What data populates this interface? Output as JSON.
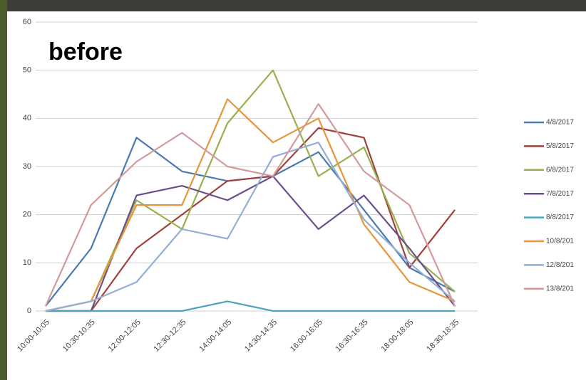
{
  "chart_data": {
    "type": "line",
    "title": "before",
    "categories": [
      "10:00-10:05",
      "10:30-10:35",
      "12:00-12:05",
      "12:30-12:35",
      "14:00-14:05",
      "14:30-14:35",
      "16:00-16:05",
      "16:30-16:35",
      "18:00-18:05",
      "18:30-18:35"
    ],
    "series": [
      {
        "name": "4/8/2017",
        "color": "#4a7ab0",
        "values": [
          1,
          13,
          36,
          29,
          27,
          28,
          33,
          21,
          9,
          4
        ]
      },
      {
        "name": "5/8/2017",
        "color": "#a0413c",
        "values": [
          0,
          0,
          13,
          20,
          27,
          28,
          38,
          36,
          9,
          21
        ]
      },
      {
        "name": "6/8/2017",
        "color": "#98b14f",
        "values": [
          0,
          2,
          23,
          17,
          39,
          50,
          28,
          34,
          12,
          4
        ]
      },
      {
        "name": "7/8/2017",
        "color": "#6a4f8c",
        "values": [
          0,
          0,
          24,
          26,
          23,
          28,
          17,
          24,
          13,
          1
        ]
      },
      {
        "name": "8/8/2017",
        "color": "#4aa5b8",
        "values": [
          0,
          0,
          0,
          0,
          2,
          0,
          0,
          0,
          0,
          0
        ]
      },
      {
        "name": "10/8/201",
        "color": "#e8953a",
        "values": [
          0,
          2,
          22,
          22,
          44,
          35,
          40,
          18,
          6,
          2
        ]
      },
      {
        "name": "12/8/201",
        "color": "#93aed4",
        "values": [
          0,
          2,
          6,
          17,
          15,
          32,
          35,
          19,
          10,
          2
        ]
      },
      {
        "name": "13/8/201",
        "color": "#d39a9a",
        "values": [
          1,
          22,
          31,
          37,
          30,
          28,
          43,
          29,
          22,
          1
        ]
      }
    ],
    "ylim": [
      0,
      60
    ],
    "yticks": [
      0,
      10,
      20,
      30,
      40,
      50,
      60
    ],
    "grid": true
  }
}
